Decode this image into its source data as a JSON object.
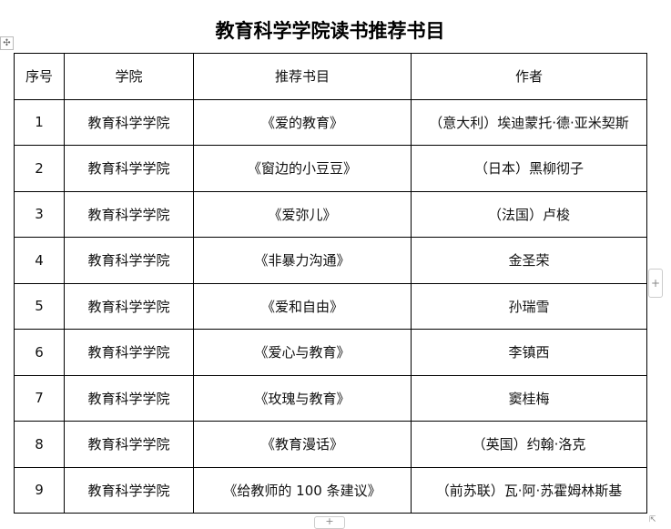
{
  "title": "教育科学学院读书推荐书目",
  "headers": [
    "序号",
    "学院",
    "推荐书目",
    "作者"
  ],
  "rows": [
    [
      "1",
      "教育科学学院",
      "《爱的教育》",
      "（意大利）埃迪蒙托·德·亚米契斯"
    ],
    [
      "2",
      "教育科学学院",
      "《窗边的小豆豆》",
      "（日本）黑柳彻子"
    ],
    [
      "3",
      "教育科学学院",
      "《爱弥儿》",
      "（法国）卢梭"
    ],
    [
      "4",
      "教育科学学院",
      "《非暴力沟通》",
      "金圣荣"
    ],
    [
      "5",
      "教育科学学院",
      "《爱和自由》",
      "孙瑞雪"
    ],
    [
      "6",
      "教育科学学院",
      "《爱心与教育》",
      "李镇西"
    ],
    [
      "7",
      "教育科学学院",
      "《玫瑰与教育》",
      "窦桂梅"
    ],
    [
      "8",
      "教育科学学院",
      "《教育漫话》",
      "（英国）约翰·洛克"
    ],
    [
      "9",
      "教育科学学院",
      "《给教师的 100 条建议》",
      "（前苏联）瓦·阿·苏霍姆林斯基"
    ]
  ]
}
